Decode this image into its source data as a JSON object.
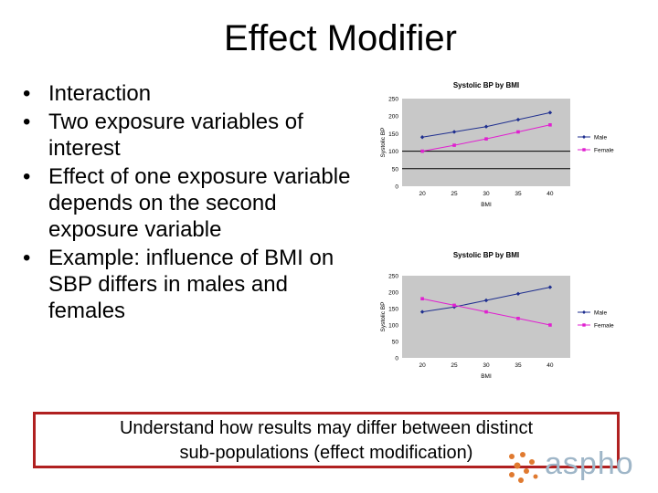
{
  "slide": {
    "title": "Effect Modifier",
    "bullets": [
      "Interaction",
      "Two exposure variables of interest",
      "Effect of one exposure variable depends on the second exposure variable",
      "Example: influence of BMI on SBP differs in males and females"
    ],
    "callout_lines": [
      "Understand how results may differ between distinct",
      "sub-populations (effect modification)"
    ],
    "logo_text": "aspho"
  },
  "colors": {
    "male": "#1f2f8f",
    "female": "#e020d0",
    "plot_bg": "#c8c8c8",
    "callout_border": "#b02020",
    "logo_text": "#9fb6c8"
  },
  "chart_data": [
    {
      "type": "line",
      "title": "Systolic BP by BMI",
      "xlabel": "BMI",
      "ylabel": "Systolic BP",
      "categories": [
        "20",
        "25",
        "30",
        "35",
        "40"
      ],
      "yticks": [
        "0",
        "50",
        "100",
        "150",
        "200",
        "250"
      ],
      "ylim": [
        0,
        250
      ],
      "grid": false,
      "reference_lines": [
        50,
        100
      ],
      "legend_placement": "right",
      "series": [
        {
          "name": "Male",
          "values": [
            140,
            155,
            170,
            190,
            210
          ]
        },
        {
          "name": "Female",
          "values": [
            100,
            117,
            135,
            155,
            175
          ]
        }
      ]
    },
    {
      "type": "line",
      "title": "Systolic BP by BMI",
      "xlabel": "BMI",
      "ylabel": "Systolic BP",
      "categories": [
        "20",
        "25",
        "30",
        "35",
        "40"
      ],
      "yticks": [
        "0",
        "50",
        "100",
        "150",
        "200",
        "250"
      ],
      "ylim": [
        0,
        250
      ],
      "grid": false,
      "reference_lines": [],
      "legend_placement": "right",
      "series": [
        {
          "name": "Male",
          "values": [
            140,
            155,
            175,
            195,
            215
          ]
        },
        {
          "name": "Female",
          "values": [
            180,
            160,
            140,
            120,
            100
          ]
        }
      ]
    }
  ]
}
